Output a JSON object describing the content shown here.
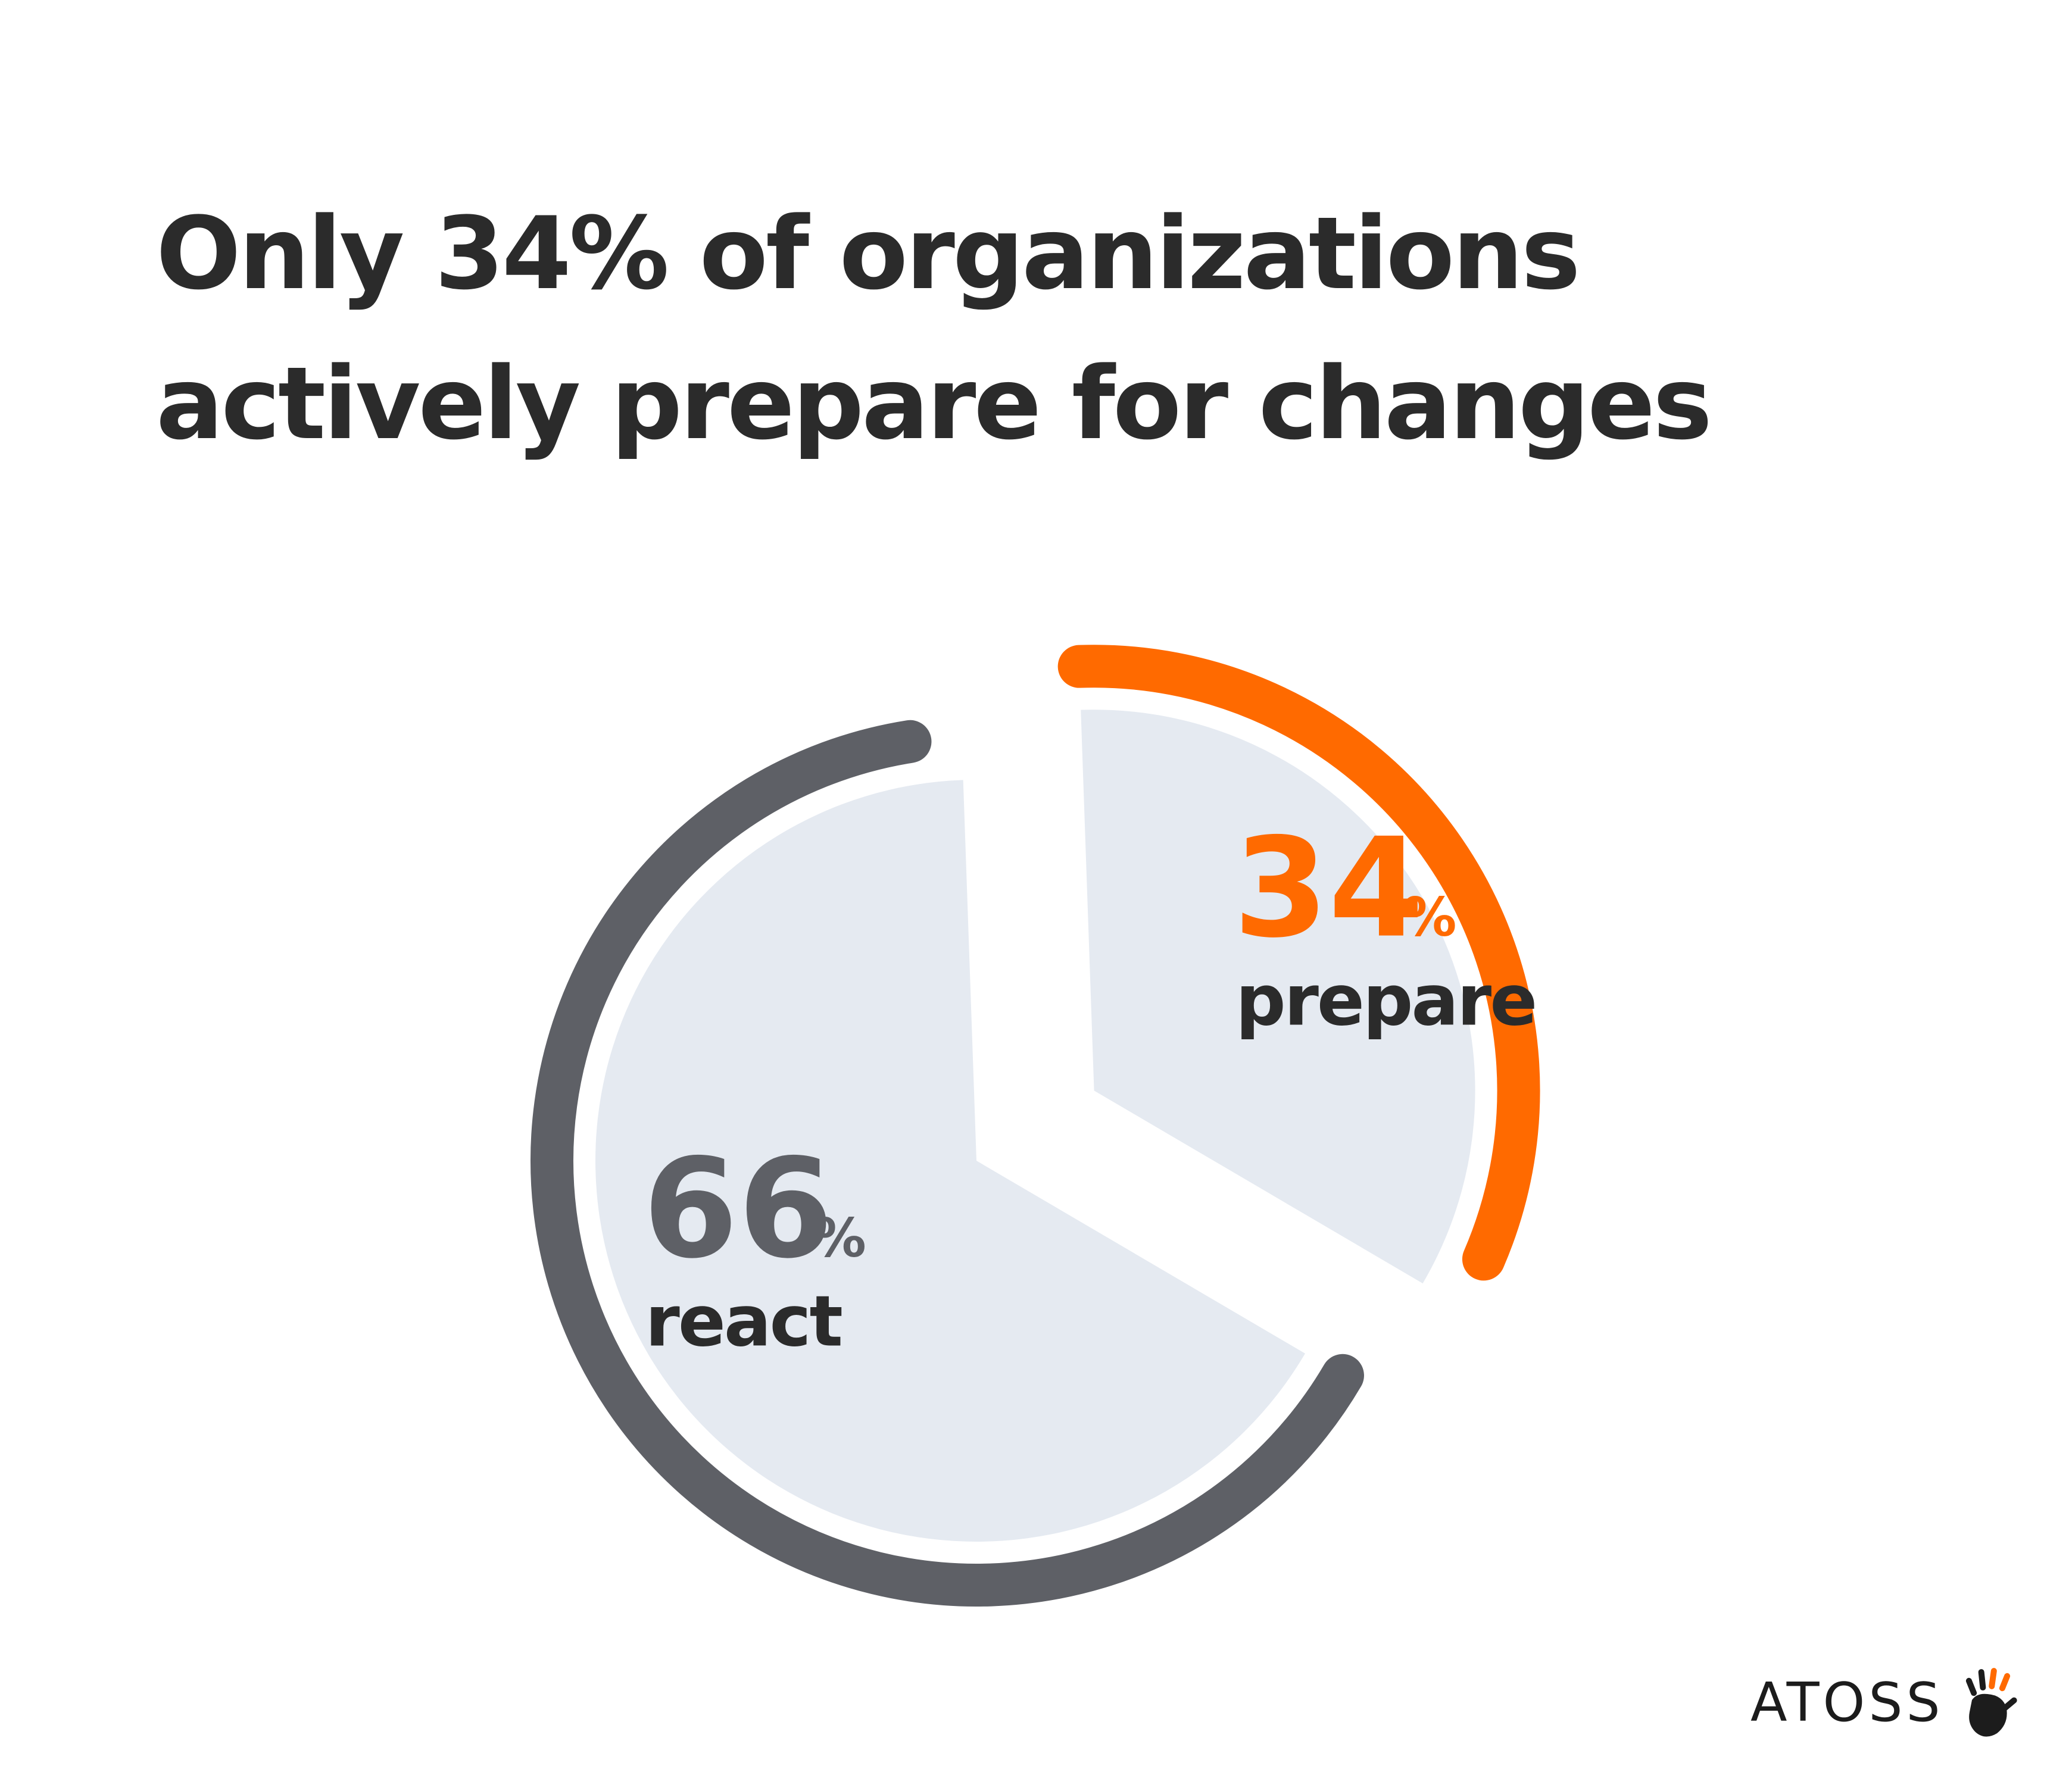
{
  "title": {
    "line1": "Only 34% of organizations",
    "line2": "actively prepare for changes"
  },
  "chart_data": {
    "type": "pie",
    "title": "Only 34% of organizations actively prepare for changes",
    "unit": "%",
    "slices": [
      {
        "label": "prepare",
        "value": 34,
        "color": "#ff6a00"
      },
      {
        "label": "react",
        "value": 66,
        "color": "#5e6066"
      }
    ],
    "fill_color": "#e5eaf1",
    "text_color": "#2b2b2b"
  },
  "brand": {
    "name": "ATOSS",
    "logo_icon": "hand-icon"
  }
}
